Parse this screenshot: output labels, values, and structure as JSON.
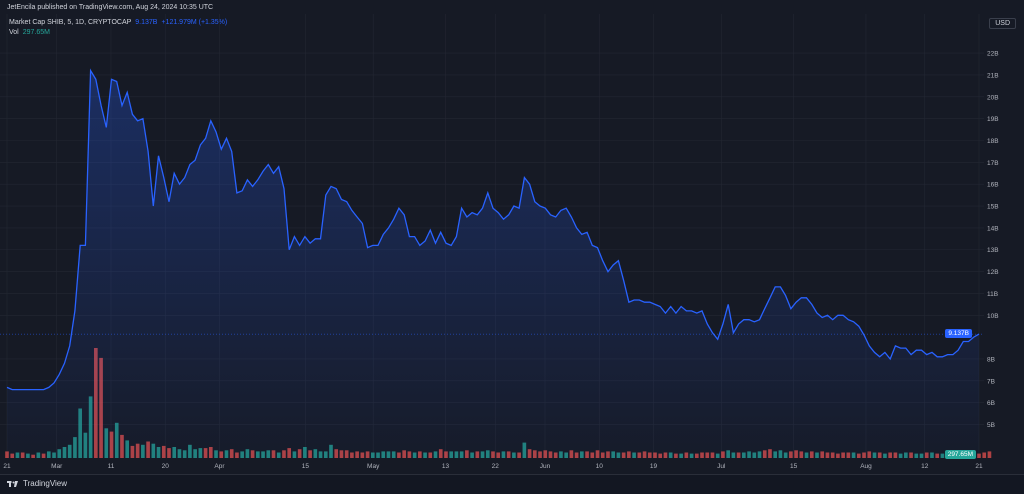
{
  "header": {
    "publisher": "JetEncila published on TradingView.com, Aug 24, 2024 10:35 UTC",
    "currency": "USD"
  },
  "legend": {
    "symbol": "Market Cap SHIB, 5, 1D, CRYPTOCAP",
    "value": "9.137B",
    "change": "+121.979M (+1.35%)",
    "vol_label": "Vol",
    "vol_value": "297.65M",
    "symbol_color": "#d1d4dc",
    "value_color": "#2962ff",
    "vol_color": "#26a69a"
  },
  "price_tag": "9.137B",
  "volume_tag": "297.65M",
  "footer": {
    "brand": "TradingView"
  },
  "colors": {
    "background": "#161a25",
    "line": "#2962ff",
    "up": "#26a69a",
    "down": "#ef5350"
  },
  "chart_data": {
    "type": "area",
    "title": "",
    "xlabel": "",
    "ylabel": "",
    "y_tick_labels": [
      "22B",
      "21B",
      "20B",
      "19B",
      "18B",
      "17B",
      "16B",
      "15B",
      "14B",
      "13B",
      "12B",
      "11B",
      "10B",
      "8B",
      "7B",
      "6B",
      "5B"
    ],
    "y_tick_values": [
      22,
      21,
      20,
      19,
      18,
      17,
      16,
      15,
      14,
      13,
      12,
      11,
      10,
      8,
      7,
      6,
      5
    ],
    "x_tick_labels": [
      "21",
      "Mar",
      "11",
      "20",
      "Apr",
      "15",
      "May",
      "13",
      "22",
      "Jun",
      "10",
      "19",
      "Jul",
      "15",
      "Aug",
      "12",
      "21"
    ],
    "ylim": [
      4.2,
      22.6
    ],
    "grid": true,
    "series": [
      {
        "values": [
          6.7,
          6.6,
          6.6,
          6.6,
          6.6,
          6.6,
          6.6,
          6.6,
          6.7,
          6.9,
          7.3,
          7.8,
          8.6,
          10.2,
          13.2,
          13.2,
          21.2,
          20.8,
          19.6,
          18.6,
          20.8,
          20.7,
          19.6,
          20.2,
          19.2,
          18.9,
          19.0,
          17.5,
          15.0,
          17.3,
          16.3,
          15.2,
          16.5,
          16.0,
          16.3,
          16.9,
          17.1,
          17.8,
          18.1,
          18.9,
          18.4,
          17.6,
          18.1,
          17.5,
          15.6,
          15.7,
          16.2,
          15.9,
          16.2,
          16.6,
          16.9,
          16.5,
          16.8,
          15.8,
          13.0,
          13.6,
          13.2,
          13.6,
          13.3,
          13.5,
          13.5,
          15.5,
          15.9,
          15.8,
          15.3,
          15.2,
          14.8,
          14.5,
          14.2,
          13.1,
          13.2,
          13.2,
          13.7,
          14.0,
          14.4,
          14.9,
          14.6,
          13.6,
          13.6,
          13.2,
          13.4,
          13.9,
          13.3,
          13.8,
          13.3,
          13.2,
          13.6,
          14.9,
          14.5,
          14.7,
          14.6,
          14.9,
          15.6,
          14.9,
          14.7,
          14.4,
          14.6,
          15.0,
          14.9,
          16.3,
          16.0,
          15.2,
          15.0,
          14.9,
          14.6,
          14.5,
          14.8,
          14.9,
          14.5,
          14.0,
          13.7,
          13.8,
          13.2,
          13.1,
          12.5,
          12.0,
          12.3,
          12.5,
          11.6,
          10.6,
          10.7,
          10.7,
          10.6,
          10.6,
          10.5,
          10.4,
          10.1,
          10.4,
          10.1,
          10.4,
          10.2,
          10.2,
          10.1,
          10.2,
          9.6,
          9.2,
          8.9,
          9.6,
          10.5,
          9.2,
          9.6,
          9.8,
          9.8,
          9.7,
          9.8,
          10.3,
          10.8,
          11.3,
          11.3,
          10.9,
          10.3,
          10.6,
          10.8,
          10.8,
          10.5,
          10.1,
          9.9,
          10.0,
          9.8,
          10.0,
          10.0,
          9.8,
          9.7,
          9.5,
          9.1,
          8.6,
          8.3,
          8.1,
          8.3,
          8.0,
          8.6,
          8.5,
          8.5,
          8.2,
          8.4,
          8.4,
          8.2,
          8.3,
          8.1,
          8.1,
          8.2,
          8.2,
          8.4,
          8.8,
          8.8,
          9.0,
          9.137
        ]
      }
    ],
    "volume": {
      "label": "Vol",
      "values": [
        0.6,
        0.4,
        0.5,
        0.5,
        0.4,
        0.3,
        0.5,
        0.4,
        0.6,
        0.5,
        0.8,
        1.0,
        1.2,
        1.9,
        4.5,
        2.3,
        5.6,
        10.0,
        9.1,
        2.7,
        2.4,
        3.2,
        2.1,
        1.6,
        1.1,
        1.3,
        1.2,
        1.5,
        1.3,
        1.0,
        1.1,
        0.9,
        1.0,
        0.8,
        0.7,
        1.2,
        0.8,
        0.9,
        0.9,
        1.0,
        0.7,
        0.6,
        0.7,
        0.8,
        0.5,
        0.6,
        0.8,
        0.7,
        0.6,
        0.6,
        0.7,
        0.7,
        0.5,
        0.7,
        0.9,
        0.6,
        0.8,
        1.0,
        0.7,
        0.8,
        0.6,
        0.6,
        1.2,
        0.8,
        0.7,
        0.7,
        0.5,
        0.6,
        0.5,
        0.6,
        0.5,
        0.5,
        0.6,
        0.6,
        0.6,
        0.5,
        0.7,
        0.6,
        0.5,
        0.6,
        0.5,
        0.5,
        0.6,
        0.8,
        0.6,
        0.6,
        0.6,
        0.6,
        0.7,
        0.5,
        0.6,
        0.6,
        0.7,
        0.6,
        0.5,
        0.6,
        0.6,
        0.5,
        0.5,
        1.4,
        0.8,
        0.7,
        0.6,
        0.7,
        0.6,
        0.5,
        0.6,
        0.5,
        0.7,
        0.5,
        0.6,
        0.6,
        0.5,
        0.7,
        0.5,
        0.6,
        0.6,
        0.5,
        0.5,
        0.6,
        0.5,
        0.5,
        0.6,
        0.5,
        0.5,
        0.4,
        0.5,
        0.5,
        0.4,
        0.4,
        0.5,
        0.4,
        0.4,
        0.5,
        0.5,
        0.5,
        0.4,
        0.6,
        0.7,
        0.5,
        0.5,
        0.5,
        0.6,
        0.5,
        0.6,
        0.7,
        0.8,
        0.6,
        0.7,
        0.5,
        0.6,
        0.7,
        0.6,
        0.5,
        0.6,
        0.5,
        0.6,
        0.5,
        0.5,
        0.4,
        0.5,
        0.5,
        0.5,
        0.4,
        0.5,
        0.6,
        0.5,
        0.5,
        0.4,
        0.5,
        0.5,
        0.4,
        0.5,
        0.5,
        0.4,
        0.4,
        0.5,
        0.5,
        0.4,
        0.4,
        0.4,
        0.4,
        0.5,
        0.4,
        0.4,
        0.5,
        0.4,
        0.5,
        0.6
      ],
      "up": [
        0,
        0,
        1,
        0,
        1,
        0,
        1,
        0,
        1,
        1,
        1,
        1,
        1,
        1,
        1,
        1,
        1,
        0,
        0,
        1,
        0,
        1,
        0,
        1,
        0,
        0,
        1,
        0,
        1,
        1,
        0,
        0,
        1,
        1,
        1,
        1,
        1,
        1,
        0,
        0,
        1,
        0,
        1,
        0,
        0,
        1,
        1,
        0,
        1,
        1,
        1,
        0,
        1,
        0,
        0,
        1,
        0,
        1,
        0,
        1,
        1,
        1,
        1,
        0,
        0,
        0,
        0,
        0,
        0,
        0,
        1,
        1,
        1,
        1,
        1,
        0,
        0,
        0,
        1,
        0,
        1,
        0,
        1,
        0,
        0,
        1,
        1,
        1,
        0,
        1,
        0,
        1,
        1,
        0,
        0,
        1,
        0,
        1,
        0,
        1,
        0,
        0,
        0,
        0,
        0,
        0,
        1,
        1,
        0,
        0,
        1,
        0,
        0,
        0,
        0,
        0,
        1,
        1,
        0,
        0,
        1,
        0,
        0,
        0,
        0,
        0,
        0,
        1,
        0,
        1,
        0,
        1,
        0,
        0,
        0,
        0,
        1,
        0,
        1,
        1,
        0,
        1,
        1,
        1,
        1,
        0,
        0,
        1,
        1,
        1,
        0,
        0,
        0,
        1,
        0,
        1,
        0,
        0,
        0,
        0,
        0,
        0,
        1,
        0,
        0,
        0,
        1,
        0,
        1,
        0,
        0,
        1,
        1,
        0,
        1,
        1,
        0,
        1,
        0,
        1,
        0,
        1,
        0,
        1,
        1,
        1
      ]
    }
  }
}
